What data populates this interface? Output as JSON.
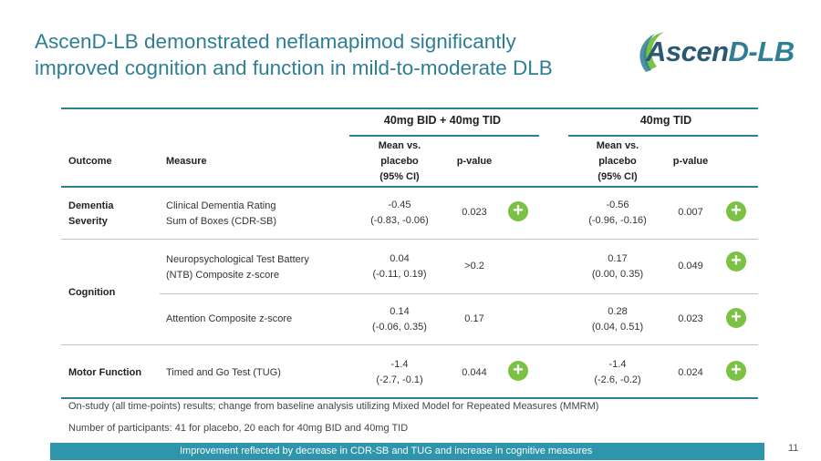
{
  "slide": {
    "title_line1": "AscenD-LB demonstrated neflamapimod significantly",
    "title_line2": "improved cognition and function in mild-to-moderate DLB",
    "page_number": "11"
  },
  "logo": {
    "text_main": "Ascen",
    "text_accent": "D-LB"
  },
  "table": {
    "group1": "40mg BID + 40mg TID",
    "group2": "40mg TID",
    "col_outcome": "Outcome",
    "col_measure": "Measure",
    "col_mean_l1": "Mean vs.",
    "col_mean_l2": "placebo",
    "col_mean_l3": "(95% CI)",
    "col_p": "p-value",
    "rows": [
      {
        "outcome_l1": "Dementia",
        "outcome_l2": "Severity",
        "measure_l1": "Clinical Dementia Rating",
        "measure_l2": "Sum of Boxes (CDR-SB)",
        "g1_mean": "-0.45",
        "g1_ci": "(-0.83, -0.06)",
        "g1_p": "0.023",
        "g2_mean": "-0.56",
        "g2_ci": "(-0.96, -0.16)",
        "g2_p": "0.007"
      },
      {
        "outcome": "Cognition",
        "measure_l1": "Neuropsychological Test Battery",
        "measure_l2": "(NTB) Composite z-score",
        "g1_mean": "0.04",
        "g1_ci": "(-0.11, 0.19)",
        "g1_p": ">0.2",
        "g2_mean": "0.17",
        "g2_ci": "(0.00, 0.35)",
        "g2_p": "0.049"
      },
      {
        "measure": "Attention Composite z-score",
        "g1_mean": "0.14",
        "g1_ci": "(-0.06, 0.35)",
        "g1_p": "0.17",
        "g2_mean": "0.28",
        "g2_ci": "(0.04, 0.51)",
        "g2_p": "0.023"
      },
      {
        "outcome": "Motor Function",
        "measure": "Timed and Go Test (TUG)",
        "g1_mean": "-1.4",
        "g1_ci": "(-2.7, -0.1)",
        "g1_p": "0.044",
        "g2_mean": "-1.4",
        "g2_ci": "(-2.6, -0.2)",
        "g2_p": "0.024"
      }
    ],
    "plus_symbol": "+"
  },
  "notes": {
    "line1": "On-study (all time-points) results; change from baseline analysis utilizing Mixed Model for Repeated Measures (MMRM)",
    "line2": "Number of participants: 41 for placebo, 20 each for 40mg BID and 40mg TID"
  },
  "banner": {
    "text": "Improvement reflected by decrease in CDR-SB and TUG and increase in cognitive measures"
  },
  "colors": {
    "title": "#2e7f96",
    "accent": "#2e95ac",
    "plus": "#7bc143"
  }
}
